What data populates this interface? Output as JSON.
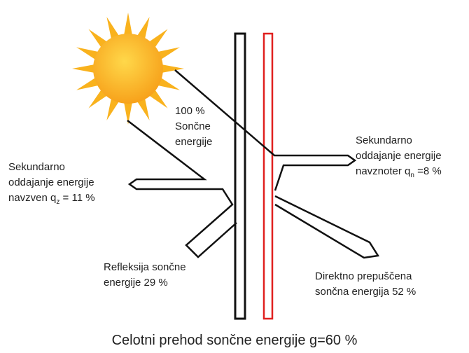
{
  "incoming": {
    "lines": [
      "100 %",
      "Sončne",
      "energije"
    ]
  },
  "outward": {
    "lines": [
      "Sekundarno",
      "oddajanje energije"
    ],
    "last": {
      "text": "navzven q",
      "sub": "z",
      "rest": " = 11 %"
    }
  },
  "inward": {
    "lines": [
      "Sekundarno",
      "oddajanje energije"
    ],
    "last": {
      "text": "navznoter q",
      "sub": "n",
      "rest": " =8 %"
    }
  },
  "reflection": {
    "lines": [
      "Refleksija sončne",
      "energije 29 %"
    ]
  },
  "transmitted": {
    "lines": [
      "Direktno prepuščena",
      "sončna energija 52 %"
    ]
  },
  "footer": "Celotni prehod sončne energije g=60 %"
}
